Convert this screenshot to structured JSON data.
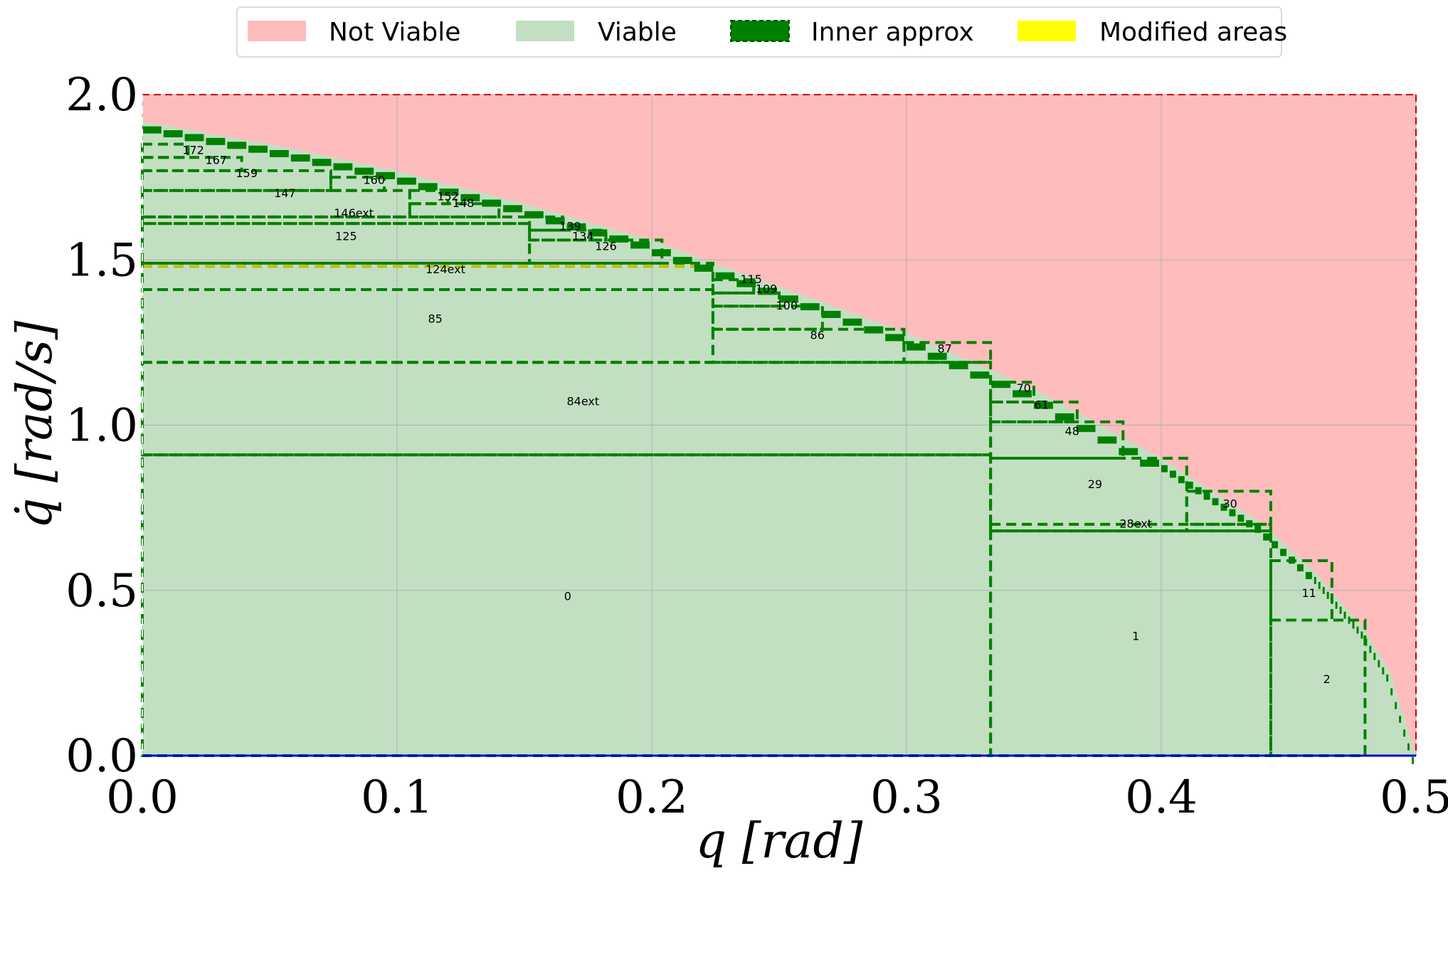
{
  "chart_data": {
    "type": "area",
    "xlabel": "q [rad]",
    "ylabel": "q̇ [rad/s]",
    "xlim": [
      0,
      0.5
    ],
    "ylim": [
      0,
      2.0
    ],
    "grid": true,
    "x_ticks": [
      "0.0",
      "0.1",
      "0.2",
      "0.3",
      "0.4",
      "0.5"
    ],
    "y_ticks": [
      "0.0",
      "0.5",
      "1.0",
      "1.5",
      "2.0"
    ],
    "legend": {
      "position": "top-center",
      "entries": [
        {
          "label": "Not Viable",
          "color": "#ffbcbc",
          "style": "fill"
        },
        {
          "label": "Viable",
          "color": "#c2dfc2",
          "style": "fill"
        },
        {
          "label": "Inner approx",
          "color": "#008000",
          "style": "dashed-fill"
        },
        {
          "label": "Modified areas",
          "color": "#ffff00",
          "style": "fill"
        }
      ]
    },
    "colors": {
      "not_viable": "#ffbcbc",
      "viable": "#c2dfc2",
      "inner_approx": "#008000",
      "modified": "#bfbf00"
    },
    "viability_boundary": {
      "x": [
        0,
        0.05,
        0.1,
        0.15,
        0.2,
        0.25,
        0.3,
        0.35,
        0.4,
        0.42,
        0.44,
        0.46,
        0.47,
        0.48,
        0.49,
        0.5
      ],
      "y": [
        1.92,
        1.85,
        1.77,
        1.67,
        1.56,
        1.42,
        1.28,
        1.11,
        0.9,
        0.8,
        0.7,
        0.56,
        0.47,
        0.38,
        0.25,
        0.0
      ]
    },
    "inner_boxes": [
      {
        "label": "0",
        "x": [
          0,
          0.333
        ],
        "y": [
          0,
          0.91
        ]
      },
      {
        "label": "1",
        "x": [
          0.333,
          0.443
        ],
        "y": [
          0,
          0.68
        ]
      },
      {
        "label": "2",
        "x": [
          0.443,
          0.48
        ],
        "y": [
          0,
          0.41
        ]
      },
      {
        "label": "11",
        "x": [
          0.443,
          0.467
        ],
        "y": [
          0.41,
          0.59
        ]
      },
      {
        "label": "29",
        "x": [
          0.333,
          0.41
        ],
        "y": [
          0.68,
          0.9
        ]
      },
      {
        "label": "28ext",
        "x": [
          0.333,
          0.443
        ],
        "y": [
          0.68,
          0.7
        ]
      },
      {
        "label": "30",
        "x": [
          0.41,
          0.443
        ],
        "y": [
          0.7,
          0.8
        ]
      },
      {
        "label": "48",
        "x": [
          0.333,
          0.385
        ],
        "y": [
          0.9,
          1.01
        ]
      },
      {
        "label": "61",
        "x": [
          0.333,
          0.367
        ],
        "y": [
          1.01,
          1.07
        ]
      },
      {
        "label": "70",
        "x": [
          0.333,
          0.35
        ],
        "y": [
          1.07,
          1.13
        ]
      },
      {
        "label": "84ext",
        "x": [
          0,
          0.333
        ],
        "y": [
          0.91,
          1.19
        ]
      },
      {
        "label": "86",
        "x": [
          0.224,
          0.299
        ],
        "y": [
          1.19,
          1.29
        ]
      },
      {
        "label": "87",
        "x": [
          0.299,
          0.333
        ],
        "y": [
          1.19,
          1.25
        ]
      },
      {
        "label": "85",
        "x": [
          0,
          0.224
        ],
        "y": [
          1.19,
          1.41
        ]
      },
      {
        "label": "100",
        "x": [
          0.224,
          0.267
        ],
        "y": [
          1.29,
          1.36
        ]
      },
      {
        "label": "109",
        "x": [
          0.224,
          0.25
        ],
        "y": [
          1.36,
          1.4
        ]
      },
      {
        "label": "115",
        "x": [
          0.224,
          0.24
        ],
        "y": [
          1.4,
          1.44
        ]
      },
      {
        "label": "124ext",
        "x": [
          0,
          0.224
        ],
        "y": [
          1.41,
          1.49
        ]
      },
      {
        "label": "125",
        "x": [
          0,
          0.152
        ],
        "y": [
          1.49,
          1.61
        ]
      },
      {
        "label": "126",
        "x": [
          0.152,
          0.204
        ],
        "y": [
          1.49,
          1.56
        ]
      },
      {
        "label": "134",
        "x": [
          0.152,
          0.182
        ],
        "y": [
          1.56,
          1.59
        ]
      },
      {
        "label": "139",
        "x": [
          0.152,
          0.165
        ],
        "y": [
          1.59,
          1.63
        ]
      },
      {
        "label": "146ext",
        "x": [
          0,
          0.152
        ],
        "y": [
          1.61,
          1.63
        ]
      },
      {
        "label": "147",
        "x": [
          0,
          0.105
        ],
        "y": [
          1.63,
          1.71
        ]
      },
      {
        "label": "148",
        "x": [
          0.105,
          0.14
        ],
        "y": [
          1.63,
          1.67
        ]
      },
      {
        "label": "152",
        "x": [
          0.105,
          0.12
        ],
        "y": [
          1.67,
          1.71
        ]
      },
      {
        "label": "159",
        "x": [
          0,
          0.074
        ],
        "y": [
          1.71,
          1.77
        ]
      },
      {
        "label": "160",
        "x": [
          0.074,
          0.095
        ],
        "y": [
          1.71,
          1.75
        ]
      },
      {
        "label": "167",
        "x": [
          0,
          0.039
        ],
        "y": [
          1.77,
          1.81
        ]
      },
      {
        "label": "172",
        "x": [
          0,
          0.018
        ],
        "y": [
          1.81,
          1.85
        ]
      }
    ],
    "modified_lines_y": [
      {
        "y": 0.91,
        "x": [
          0,
          0.333
        ]
      },
      {
        "y": 1.19,
        "x": [
          0,
          0.333
        ]
      },
      {
        "y": 1.41,
        "x": [
          0,
          0.224
        ]
      },
      {
        "y": 1.48,
        "x": [
          0,
          0.224
        ]
      },
      {
        "y": 1.61,
        "x": [
          0,
          0.152
        ]
      },
      {
        "y": 1.63,
        "x": [
          0,
          0.152
        ]
      },
      {
        "y": 1.71,
        "x": [
          0,
          0.105
        ]
      },
      {
        "y": 0.68,
        "x": [
          0.333,
          0.443
        ]
      },
      {
        "y": 0.7,
        "x": [
          0.333,
          0.443
        ]
      }
    ],
    "labels": [
      {
        "text": "0",
        "x": 0.167,
        "y": 0.47
      },
      {
        "text": "1",
        "x": 0.39,
        "y": 0.35
      },
      {
        "text": "2",
        "x": 0.465,
        "y": 0.22
      },
      {
        "text": "11",
        "x": 0.458,
        "y": 0.48
      },
      {
        "text": "28ext",
        "x": 0.39,
        "y": 0.69
      },
      {
        "text": "29",
        "x": 0.374,
        "y": 0.81
      },
      {
        "text": "30",
        "x": 0.427,
        "y": 0.75
      },
      {
        "text": "48",
        "x": 0.365,
        "y": 0.97
      },
      {
        "text": "61",
        "x": 0.353,
        "y": 1.05
      },
      {
        "text": "70",
        "x": 0.346,
        "y": 1.1
      },
      {
        "text": "84ext",
        "x": 0.173,
        "y": 1.06
      },
      {
        "text": "85",
        "x": 0.115,
        "y": 1.31
      },
      {
        "text": "86",
        "x": 0.265,
        "y": 1.26
      },
      {
        "text": "87",
        "x": 0.315,
        "y": 1.22
      },
      {
        "text": "100",
        "x": 0.253,
        "y": 1.35
      },
      {
        "text": "109",
        "x": 0.245,
        "y": 1.4
      },
      {
        "text": "115",
        "x": 0.239,
        "y": 1.43
      },
      {
        "text": "124ext",
        "x": 0.119,
        "y": 1.46
      },
      {
        "text": "125",
        "x": 0.08,
        "y": 1.56
      },
      {
        "text": "126",
        "x": 0.182,
        "y": 1.53
      },
      {
        "text": "134",
        "x": 0.173,
        "y": 1.56
      },
      {
        "text": "139",
        "x": 0.168,
        "y": 1.59
      },
      {
        "text": "146ext",
        "x": 0.083,
        "y": 1.63
      },
      {
        "text": "147",
        "x": 0.056,
        "y": 1.69
      },
      {
        "text": "148",
        "x": 0.126,
        "y": 1.66
      },
      {
        "text": "152",
        "x": 0.12,
        "y": 1.68
      },
      {
        "text": "159",
        "x": 0.041,
        "y": 1.75
      },
      {
        "text": "160",
        "x": 0.091,
        "y": 1.73
      },
      {
        "text": "167",
        "x": 0.029,
        "y": 1.79
      },
      {
        "text": "172",
        "x": 0.02,
        "y": 1.82
      }
    ]
  }
}
